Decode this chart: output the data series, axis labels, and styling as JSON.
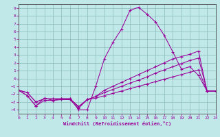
{
  "xlabel": "Windchill (Refroidissement éolien,°C)",
  "bg_color": "#c0e8e8",
  "line_color": "#990099",
  "grid_color": "#88b8b8",
  "xlim": [
    0,
    23
  ],
  "ylim": [
    -4.5,
    9.5
  ],
  "xticks": [
    0,
    1,
    2,
    3,
    4,
    5,
    6,
    7,
    8,
    9,
    10,
    11,
    12,
    13,
    14,
    15,
    16,
    17,
    18,
    19,
    20,
    21,
    22,
    23
  ],
  "yticks": [
    -4,
    -3,
    -2,
    -1,
    0,
    1,
    2,
    3,
    4,
    5,
    6,
    7,
    8,
    9
  ],
  "lines": [
    {
      "x": [
        0,
        1,
        2,
        3,
        4,
        5,
        6,
        7,
        8,
        9,
        10,
        11,
        12,
        13,
        14,
        15,
        16,
        17,
        18,
        19,
        20,
        21,
        22,
        23
      ],
      "y": [
        -1.5,
        -2.2,
        -3.5,
        -2.5,
        -2.8,
        -2.6,
        -2.6,
        -4.0,
        -4.0,
        -1.0,
        2.5,
        4.6,
        6.3,
        8.7,
        9.1,
        8.2,
        7.2,
        5.5,
        3.4,
        1.2,
        1.5,
        0.4,
        -1.6,
        -1.6
      ]
    },
    {
      "x": [
        0,
        1,
        2,
        3,
        4,
        5,
        6,
        7,
        8,
        9,
        10,
        11,
        12,
        13,
        14,
        15,
        16,
        17,
        18,
        19,
        20,
        21,
        22,
        23
      ],
      "y": [
        -1.5,
        -2.2,
        -3.5,
        -2.8,
        -2.8,
        -2.7,
        -2.7,
        -3.8,
        -2.7,
        -2.5,
        -2.2,
        -1.9,
        -1.6,
        -1.3,
        -1.0,
        -0.7,
        -0.4,
        -0.1,
        0.2,
        0.5,
        0.8,
        1.1,
        -1.6,
        -1.6
      ]
    },
    {
      "x": [
        0,
        1,
        2,
        3,
        4,
        5,
        6,
        7,
        8,
        9,
        10,
        11,
        12,
        13,
        14,
        15,
        16,
        17,
        18,
        19,
        20,
        21,
        22,
        23
      ],
      "y": [
        -1.5,
        -1.8,
        -3.0,
        -2.6,
        -2.6,
        -2.6,
        -2.6,
        -3.6,
        -2.7,
        -2.3,
        -1.8,
        -1.4,
        -1.0,
        -0.6,
        -0.2,
        0.2,
        0.7,
        1.1,
        1.5,
        1.9,
        2.3,
        2.6,
        -1.6,
        -1.6
      ]
    },
    {
      "x": [
        0,
        1,
        2,
        3,
        4,
        5,
        6,
        7,
        8,
        9,
        10,
        11,
        12,
        13,
        14,
        15,
        16,
        17,
        18,
        19,
        20,
        21,
        22,
        23
      ],
      "y": [
        -1.5,
        -1.8,
        -3.0,
        -2.6,
        -2.6,
        -2.6,
        -2.6,
        -3.6,
        -2.7,
        -2.3,
        -1.5,
        -1.0,
        -0.5,
        0.0,
        0.5,
        1.0,
        1.5,
        2.0,
        2.5,
        2.8,
        3.1,
        3.5,
        -1.6,
        -1.6
      ]
    }
  ]
}
